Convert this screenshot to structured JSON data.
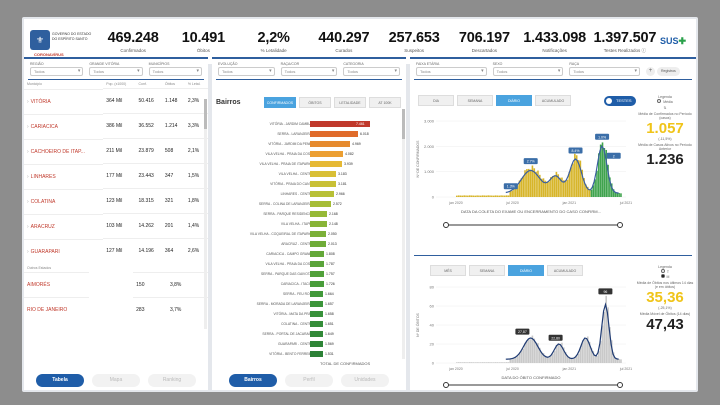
{
  "kpis": [
    {
      "value": "469.248",
      "label": "Confirmados"
    },
    {
      "value": "10.491",
      "label": "Óbitos"
    },
    {
      "value": "2,2%",
      "label": "% Letalidade"
    },
    {
      "value": "440.297",
      "label": "Curados"
    },
    {
      "value": "257.653",
      "label": "Suspeitos"
    },
    {
      "value": "706.197",
      "label": "Descartados"
    },
    {
      "value": "1.433.098",
      "label": "Notificações"
    },
    {
      "value": "1.397.507",
      "label": "Testes Realizados"
    }
  ],
  "brand": {
    "state_text": "GOVERNO DO ESTADO DO ESPÍRITO SANTO",
    "program_text": "CORONAVÍRUS",
    "sus": "SUS"
  },
  "left": {
    "filters": [
      {
        "label": "Região",
        "value": "Todos"
      },
      {
        "label": "Grande Vitória",
        "value": "Todos"
      },
      {
        "label": "Municípios",
        "value": "Todos"
      }
    ],
    "columns": [
      "Município",
      "Pop. (x1000)",
      "Conf.",
      "Óbitos",
      "% Letal."
    ],
    "rows": [
      {
        "name": "VITÓRIA",
        "pop": "364 Mil",
        "conf": "50.416",
        "obitos": "1.148",
        "letal": "2,3%"
      },
      {
        "name": "CARIACICA",
        "pop": "386 Mil",
        "conf": "36.552",
        "obitos": "1.214",
        "letal": "3,3%"
      },
      {
        "name": "CACHOEIRO DE ITAP...",
        "pop": "211 Mil",
        "conf": "23.879",
        "obitos": "508",
        "letal": "2,1%"
      },
      {
        "name": "LINHARES",
        "pop": "177 Mil",
        "conf": "23.443",
        "obitos": "347",
        "letal": "1,5%"
      },
      {
        "name": "COLATINA",
        "pop": "123 Mil",
        "conf": "18.315",
        "obitos": "321",
        "letal": "1,8%"
      },
      {
        "name": "ARACRUZ",
        "pop": "103 Mil",
        "conf": "14.262",
        "obitos": "201",
        "letal": "1,4%"
      },
      {
        "name": "GUARAPARI",
        "pop": "127 Mil",
        "conf": "14.196",
        "obitos": "364",
        "letal": "2,6%"
      }
    ],
    "other_header": "Outros Estados",
    "other_rows": [
      {
        "name": "AIMORÉS",
        "conf": "150",
        "letal": "3,8%"
      },
      {
        "name": "RIO DE JANEIRO",
        "conf": "283",
        "letal": "3,7%"
      }
    ],
    "tabs": [
      "Tabela",
      "Mapa",
      "Ranking"
    ]
  },
  "middle": {
    "filters": [
      {
        "label": "Evolução",
        "value": "Todos"
      },
      {
        "label": "Raça/Cor",
        "value": "Todos"
      },
      {
        "label": "Categoria",
        "value": "Todos"
      }
    ],
    "title": "Bairros",
    "tabs": [
      "CONFIRMADOS",
      "ÓBITOS",
      "LETALIDADE",
      "AT 100K"
    ],
    "bairros": [
      {
        "name": "VITÓRIA - JARDIM CAMBURI",
        "value": "7.461",
        "pct": 100,
        "color": "#c0392b"
      },
      {
        "name": "SERRA - LARANJEIRAS",
        "value": "6.018",
        "pct": 80,
        "color": "#e06b2a"
      },
      {
        "name": "VITÓRIA - JARDIM DA PENHA",
        "value": "4.969",
        "pct": 67,
        "color": "#e68a2e"
      },
      {
        "name": "VILA VELHA - PRAIA DA COSTA",
        "value": "4.082",
        "pct": 55,
        "color": "#ec9f32"
      },
      {
        "name": "VILA VELHA - PRAIA DE ITAPARICA",
        "value": "3.939",
        "pct": 53,
        "color": "#e6b934"
      },
      {
        "name": "VILA VELHA - CENTRO",
        "value": "3.183",
        "pct": 43,
        "color": "#d9bf35"
      },
      {
        "name": "VITÓRIA - PRAIA DO CANTO",
        "value": "3.181",
        "pct": 43,
        "color": "#c9c035"
      },
      {
        "name": "LINHARES - CENTRO",
        "value": "2.966",
        "pct": 40,
        "color": "#b8c036"
      },
      {
        "name": "SERRA - COLINA DE LARANJEIRAS",
        "value": "2.572",
        "pct": 35,
        "color": "#a6bd36"
      },
      {
        "name": "SERRA - PARQUE RESIDENCIAL",
        "value": "2.168",
        "pct": 29,
        "color": "#96b937"
      },
      {
        "name": "VILA VELHA - ITAPUÃ",
        "value": "2.148",
        "pct": 29,
        "color": "#88b437"
      },
      {
        "name": "VILA VELHA - COQUEIRAL DE ITAPARICA",
        "value": "2.050",
        "pct": 27,
        "color": "#7bb038"
      },
      {
        "name": "ARACRUZ - CENTRO",
        "value": "2.013",
        "pct": 27,
        "color": "#6fac38"
      },
      {
        "name": "CARIACICA - CAMPO GRANDE",
        "value": "1.808",
        "pct": 24,
        "color": "#64a839"
      },
      {
        "name": "VILA VELHA - PRAIA DA COSTA",
        "value": "1.787",
        "pct": 24,
        "color": "#5aa43a"
      },
      {
        "name": "SERRA - PARQUE DAS GAIVOTAS",
        "value": "1.757",
        "pct": 24,
        "color": "#51a13a"
      },
      {
        "name": "CARIACICA - ITACIBÁ",
        "value": "1.726",
        "pct": 23,
        "color": "#499d3a"
      },
      {
        "name": "SERRA - FEU ROSA",
        "value": "1.664",
        "pct": 22,
        "color": "#42993a"
      },
      {
        "name": "SERRA - MORADA DE LARANJEIRAS",
        "value": "1.657",
        "pct": 22,
        "color": "#3c953a"
      },
      {
        "name": "VITÓRIA - MATA DA PRAIA",
        "value": "1.658",
        "pct": 22,
        "color": "#38913a"
      },
      {
        "name": "COLATINA - CENTRO",
        "value": "1.651",
        "pct": 22,
        "color": "#358d39"
      },
      {
        "name": "SERRA - PORTAL DE JACARAÍPE",
        "value": "1.649",
        "pct": 22,
        "color": "#328938"
      },
      {
        "name": "GUARAPARI - CENTRO",
        "value": "1.569",
        "pct": 21,
        "color": "#2f8537"
      },
      {
        "name": "VITÓRIA - BENTO FERREIRA",
        "value": "1.531",
        "pct": 21,
        "color": "#2c8136"
      }
    ],
    "total_label": "TOTAL DE CONFIRMADOS",
    "bottom_tabs": [
      "Bairros",
      "Perfil",
      "Unidades"
    ]
  },
  "right": {
    "filters": [
      {
        "label": "Faixa Etária",
        "value": "Todos"
      },
      {
        "label": "Sexo",
        "value": "Todos"
      },
      {
        "label": "Raça",
        "value": "Todos"
      }
    ],
    "top": {
      "tabs": [
        "DIA",
        "SEMANA",
        "DIÁRIO",
        "ACUMULADO"
      ],
      "toggle": "TESTES",
      "legend_title": "Legenda",
      "legend_items": [
        "Média"
      ],
      "side_label1": "Média de Confirmados no Período (casos)",
      "side_value1": "1.057",
      "side_delta1": "(-11,5%)",
      "side_label2": "Média de Casos Ativos no Período Anterior",
      "side_value2": "1.236",
      "x_label": "DATA DA COLETA DO EXAME OU ENCERRAMENTO DO CASO CONFIRM...",
      "y_label": "Nº DE CONFIRMADOS",
      "ticks_x": [
        "jan 2020",
        "jul 2020",
        "jan 2021",
        "jul 2021"
      ],
      "ticks_y": [
        "3.000",
        "2.000",
        "1.000",
        "0"
      ],
      "annotations": [
        "1.3%",
        "2.7%",
        "8.4%",
        "1.0%",
        "2"
      ]
    },
    "bottom": {
      "tabs": [
        "MÊS",
        "SEMANA",
        "DIÁRIO",
        "ACUMULADO"
      ],
      "legend_title": "Legenda",
      "legend_items": [
        "T",
        "M"
      ],
      "side_label1": "Média de Óbitos nos últimos 14 dias (e em óbitos)",
      "side_value1": "35,36",
      "side_delta1": "(-25,1%)",
      "side_label2": "Média Móvel de Óbitos (14 dias)",
      "side_value2": "47,43",
      "x_label": "DATA DO ÓBITO CONFIRMADO",
      "y_label": "Nº DE ÓBITOS",
      "ticks_x": [
        "jan 2020",
        "jul 2020",
        "jan 2021",
        "jul 2021"
      ],
      "ticks_y": [
        "80",
        "60",
        "40",
        "20",
        "0"
      ],
      "annotations": [
        "27,87",
        "22,80",
        "96"
      ]
    },
    "top_action": "Registros"
  }
}
